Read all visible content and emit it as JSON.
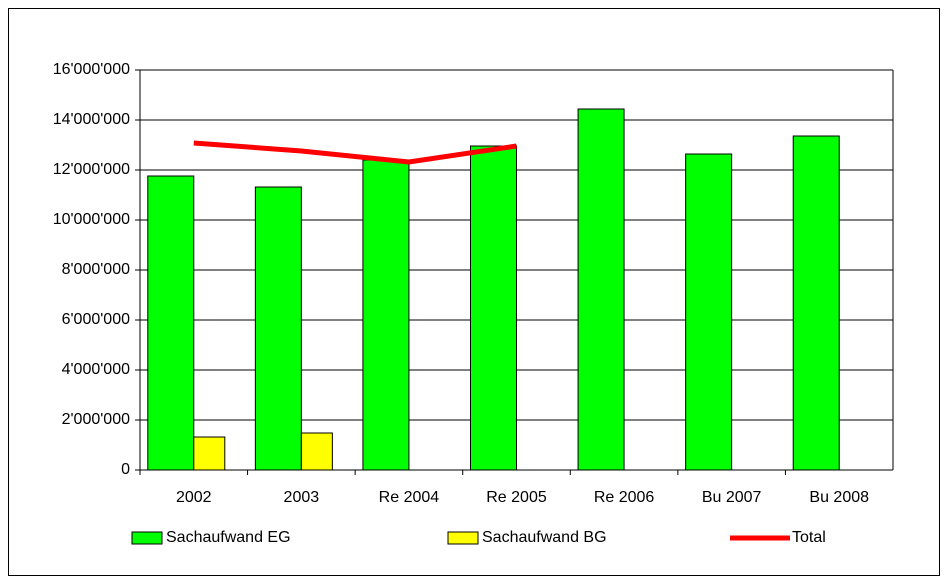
{
  "chart_data": {
    "type": "bar",
    "categories": [
      "2002",
      "2003",
      "Re 2004",
      "Re 2005",
      "Re 2006",
      "Bu 2007",
      "Bu 2008"
    ],
    "series": [
      {
        "name": "Sachaufwand EG",
        "color": "#00ff00",
        "type": "bar",
        "values": [
          11760000,
          11320000,
          12400000,
          12960000,
          14440000,
          12640000,
          13360000
        ]
      },
      {
        "name": "Sachaufwand BG",
        "color": "#ffff00",
        "type": "bar",
        "values": [
          1320000,
          1480000,
          null,
          null,
          null,
          null,
          null
        ]
      },
      {
        "name": "Total",
        "color": "#ff0000",
        "type": "line",
        "values": [
          13080000,
          12760000,
          12320000,
          12960000,
          null,
          null,
          null
        ]
      }
    ],
    "ylim": [
      0,
      16000000
    ],
    "yticks": [
      0,
      {
        "value": 2000000,
        "label": "2'000'000"
      },
      {
        "value": 4000000,
        "label": "4'000'000"
      },
      {
        "value": 6000000,
        "label": "6'000'000"
      },
      {
        "value": 8000000,
        "label": "8'000'000"
      },
      {
        "value": 10000000,
        "label": "10'000'000"
      },
      {
        "value": 12000000,
        "label": "12'000'000"
      },
      {
        "value": 14000000,
        "label": "14'000'000"
      },
      {
        "value": 16000000,
        "label": "16'000'000"
      }
    ],
    "grid": true,
    "legend": "bottom"
  }
}
